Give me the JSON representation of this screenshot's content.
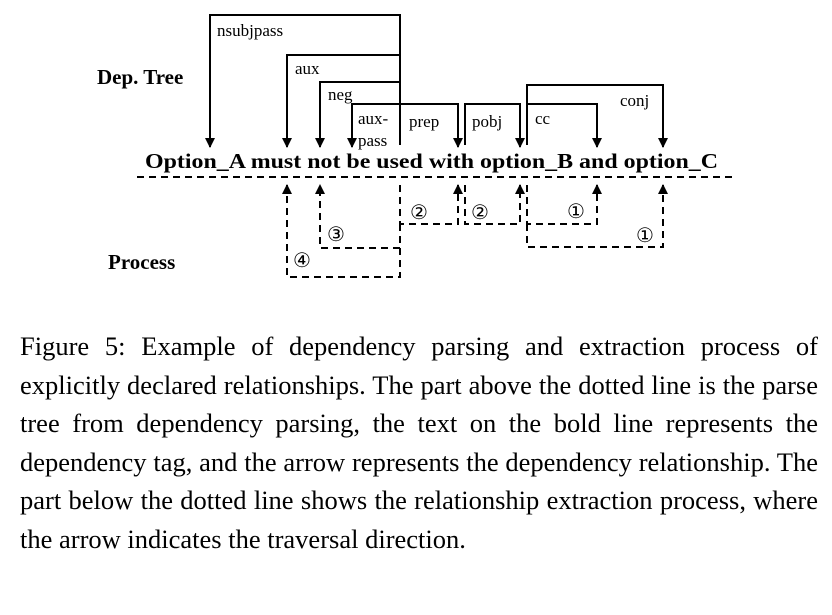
{
  "figure": {
    "dep_tree_label": "Dep. Tree",
    "process_label": "Process",
    "sentence": "Option_A must not be used with option_B and option_C",
    "edges": {
      "nsubjpass": "nsubjpass",
      "aux": "aux",
      "neg": "neg",
      "auxpass_line1": "aux-",
      "auxpass_line2": "pass",
      "prep": "prep",
      "pobj": "pobj",
      "cc": "cc",
      "conj": "conj"
    },
    "steps": {
      "prep_step": "②",
      "pobj_step": "②",
      "cc_step": "①",
      "conj_step": "①",
      "neg_step": "③",
      "aux_step": "④"
    }
  },
  "caption": "Figure 5: Example of dependency parsing and extraction process of explicitly declared relationships. The part above the dotted line is the parse tree from dependency parsing, the text on the bold line represents the dependency tag, and the arrow represents the dependency relationship. The part below the dotted line shows the relationship extraction process, where the arrow indicates the traversal direction."
}
